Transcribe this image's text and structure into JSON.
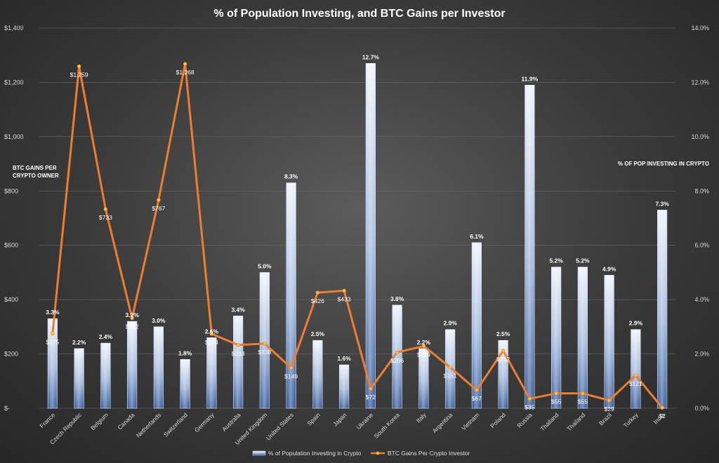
{
  "chart_data": {
    "type": "bar",
    "title": "% of Population Investing, and BTC Gains per Investor",
    "categories": [
      "France",
      "Czech Republic",
      "Belgium",
      "Canada",
      "Netherlands",
      "Switzerland",
      "Germany",
      "Australia",
      "United Kingdom",
      "United States",
      "Spain",
      "Japan",
      "Ukraine",
      "South Korea",
      "Italy",
      "Argentina",
      "Vietnam",
      "Poland",
      "Russia",
      "Thailand",
      "Thailand",
      "Brazil",
      "Turkey",
      "India"
    ],
    "series": [
      {
        "name": "% of Population Investing in Crypto",
        "type": "bar",
        "axis": "right",
        "color": "#b4c7e7",
        "values": [
          3.3,
          2.2,
          2.4,
          3.2,
          3.0,
          1.8,
          2.6,
          3.4,
          5.0,
          8.3,
          2.5,
          1.6,
          12.7,
          3.8,
          2.2,
          2.9,
          6.1,
          2.5,
          11.9,
          5.2,
          5.2,
          4.9,
          2.9,
          7.3
        ],
        "labels": [
          "3.3%",
          "2.2%",
          "2.4%",
          "3.2%",
          "3.0%",
          "1.8%",
          "2.6%",
          "3.4%",
          "5.0%",
          "8.3%",
          "2.5%",
          "1.6%",
          "12.7%",
          "3.8%",
          "2.2%",
          "2.9%",
          "6.1%",
          "2.5%",
          "11.9%",
          "5.2%",
          "5.2%",
          "4.9%",
          "2.9%",
          "7.3%"
        ]
      },
      {
        "name": "BTC Gains Per Crypto Investor",
        "type": "line",
        "axis": "left",
        "color": "#ed7d31",
        "values": [
          275,
          1259,
          733,
          332,
          767,
          1268,
          274,
          233,
          238,
          149,
          426,
          433,
          72,
          206,
          229,
          151,
          67,
          212,
          35,
          55,
          55,
          29,
          121,
          2
        ],
        "labels": [
          "$275",
          "$1,259",
          "$733",
          "$332",
          "$767",
          "$1,268",
          "$274",
          "$233",
          "$238",
          "$149",
          "$426",
          "$433",
          "$72",
          "$206",
          "$229",
          "$151",
          "$67",
          "$212",
          "$35",
          "$55",
          "$55",
          "$29",
          "$121",
          "$2"
        ]
      }
    ],
    "y_left": {
      "label": "BTC GAINS PER CRYPTO OWNER",
      "range": [
        0,
        1400
      ],
      "ticks": [
        0,
        200,
        400,
        600,
        800,
        1000,
        1200,
        1400
      ],
      "tick_labels": [
        "$-",
        "$200",
        "$400",
        "$600",
        "$800",
        "$1,000",
        "$1,200",
        "$1,400"
      ]
    },
    "y_right": {
      "label": "% OF POP INVESTING IN CRYPTO",
      "range": [
        0,
        14
      ],
      "ticks": [
        0,
        2,
        4,
        6,
        8,
        10,
        12,
        14
      ],
      "tick_labels": [
        "0.0%",
        "2.0%",
        "4.0%",
        "6.0%",
        "8.0%",
        "10.0%",
        "12.0%",
        "14.0%"
      ]
    },
    "grid": true,
    "legend_position": "bottom"
  }
}
